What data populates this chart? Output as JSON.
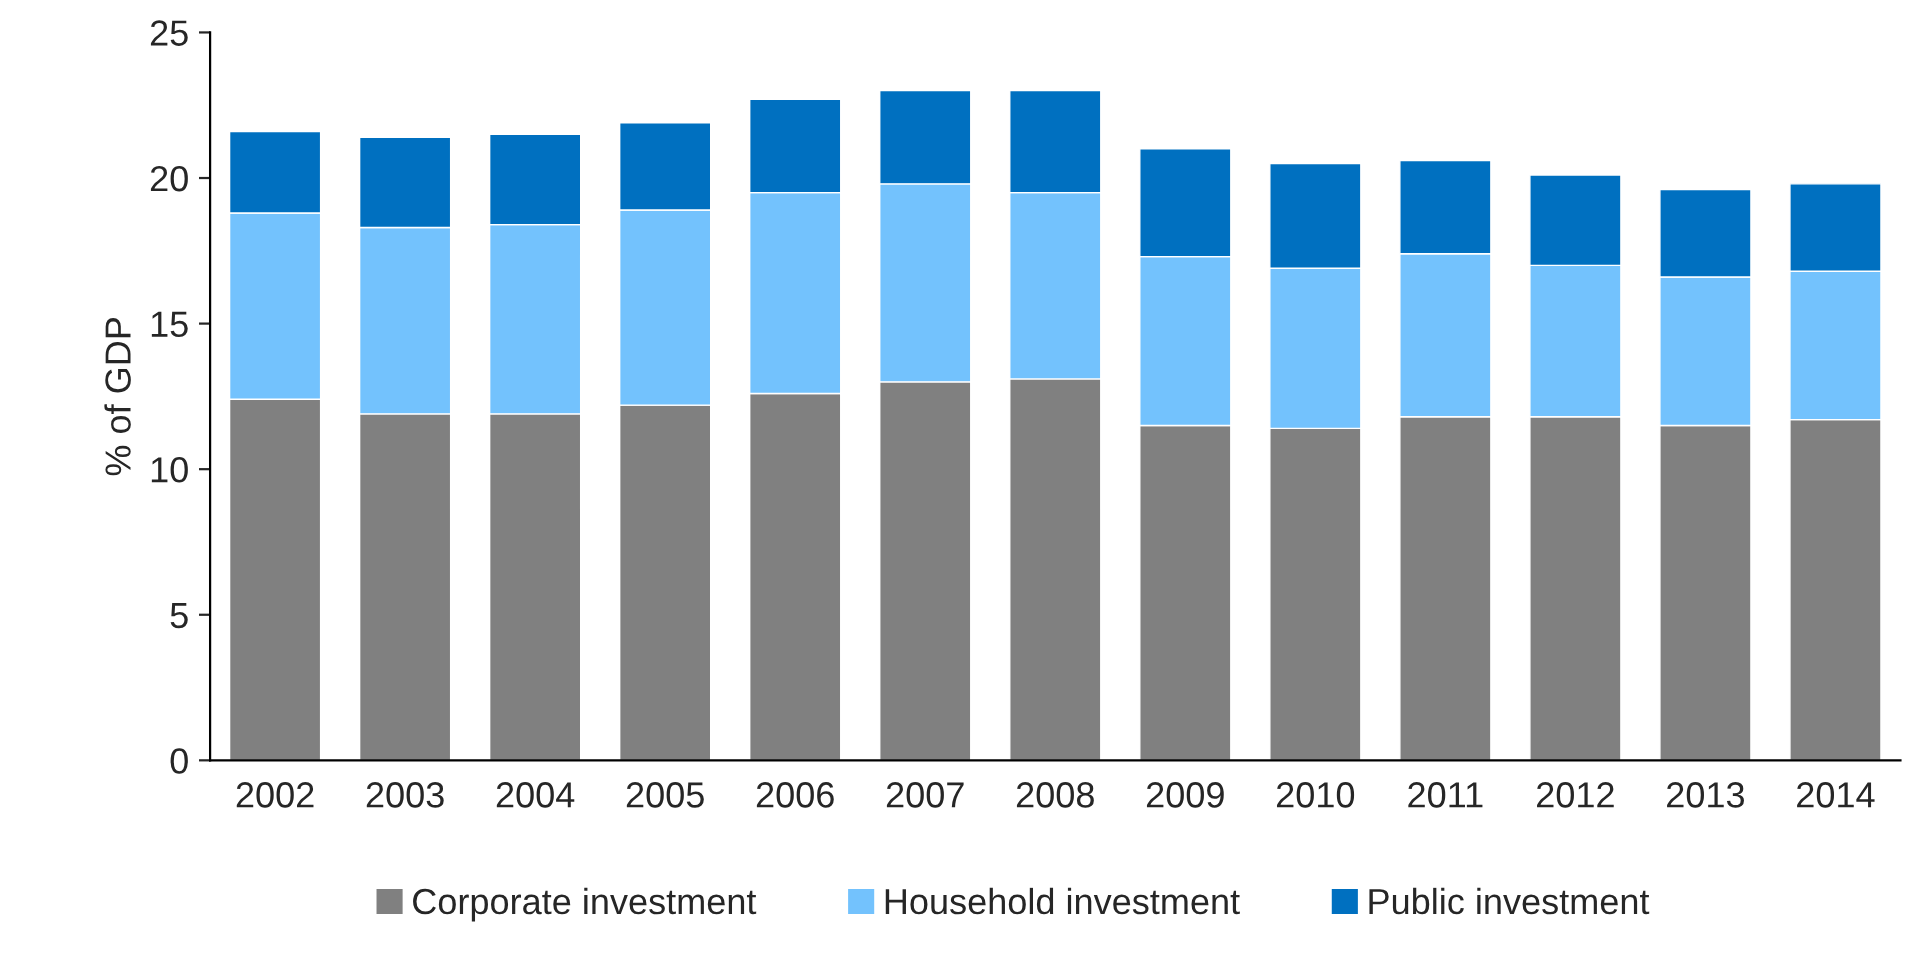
{
  "chart_data": {
    "type": "bar",
    "stacked": true,
    "ylabel": "% of GDP",
    "categories": [
      "2002",
      "2003",
      "2004",
      "2005",
      "2006",
      "2007",
      "2008",
      "2009",
      "2010",
      "2011",
      "2012",
      "2013",
      "2014"
    ],
    "series": [
      {
        "name": "Corporate investment",
        "color": "#808080",
        "values": [
          12.4,
          11.9,
          11.9,
          12.2,
          12.6,
          13.0,
          13.1,
          11.5,
          11.4,
          11.8,
          11.8,
          11.5,
          11.7
        ]
      },
      {
        "name": "Household investment",
        "color": "#73c2fd",
        "values": [
          6.4,
          6.4,
          6.5,
          6.7,
          6.9,
          6.8,
          6.4,
          5.8,
          5.5,
          5.6,
          5.2,
          5.1,
          5.1
        ]
      },
      {
        "name": "Public investment",
        "color": "#0070c0",
        "values": [
          2.8,
          3.1,
          3.1,
          3.0,
          3.2,
          3.2,
          3.5,
          3.7,
          3.6,
          3.2,
          3.1,
          3.0,
          3.0
        ]
      }
    ],
    "ylim": [
      0,
      25
    ],
    "yticks": [
      0,
      5,
      10,
      15,
      20,
      25
    ],
    "grid": false,
    "legend": "bottom"
  }
}
